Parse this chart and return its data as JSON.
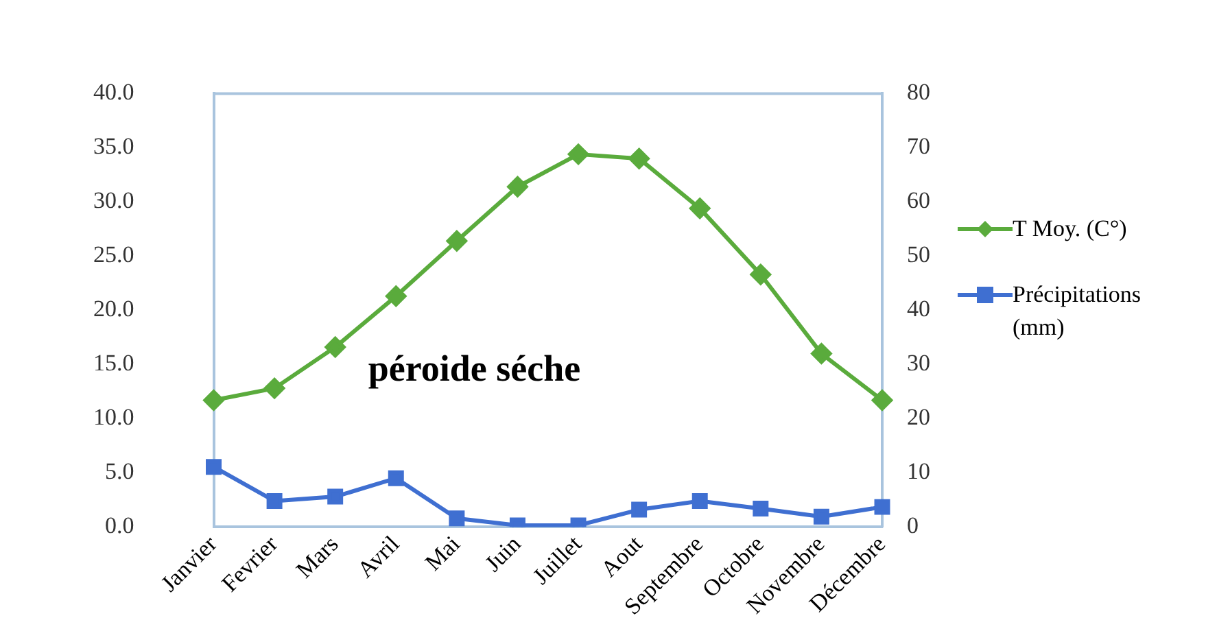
{
  "chart_data": {
    "type": "line",
    "categories": [
      "Janvier",
      "Fevrier",
      "Mars",
      "Avril",
      "Mai",
      "Juin",
      "Juillet",
      "Aout",
      "Septembre",
      "Octobre",
      "Novembre",
      "Décembre"
    ],
    "series": [
      {
        "name": "T Moy. (C°)",
        "color": "#5aab3c",
        "marker": "diamond",
        "values": [
          11.7,
          12.8,
          16.6,
          21.3,
          26.4,
          31.4,
          34.4,
          34.0,
          29.4,
          23.3,
          16.0,
          11.7
        ]
      },
      {
        "name": "Précipitations (mm)",
        "color": "#3f6fd1",
        "marker": "square",
        "axis": "y2",
        "values": [
          11.1,
          4.8,
          5.6,
          9.0,
          1.6,
          0.3,
          0.3,
          3.2,
          4.8,
          3.4,
          1.9,
          3.7
        ]
      }
    ],
    "ylim": [
      0,
      40
    ],
    "yticks": [
      {
        "value": 0,
        "label": "0.0"
      },
      {
        "value": 5,
        "label": "5.0"
      },
      {
        "value": 10,
        "label": "10.0"
      },
      {
        "value": 15,
        "label": "15.0"
      },
      {
        "value": 20,
        "label": "20.0"
      },
      {
        "value": 25,
        "label": "25.0"
      },
      {
        "value": 30,
        "label": "30.0"
      },
      {
        "value": 35,
        "label": "35.0"
      },
      {
        "value": 40,
        "label": "40.0"
      }
    ],
    "y2lim": [
      0,
      80
    ],
    "y2ticks": [
      0,
      10,
      20,
      30,
      40,
      50,
      60,
      70,
      80
    ],
    "annotations": [
      "péroide séche"
    ],
    "legend": "right",
    "grid": false
  }
}
